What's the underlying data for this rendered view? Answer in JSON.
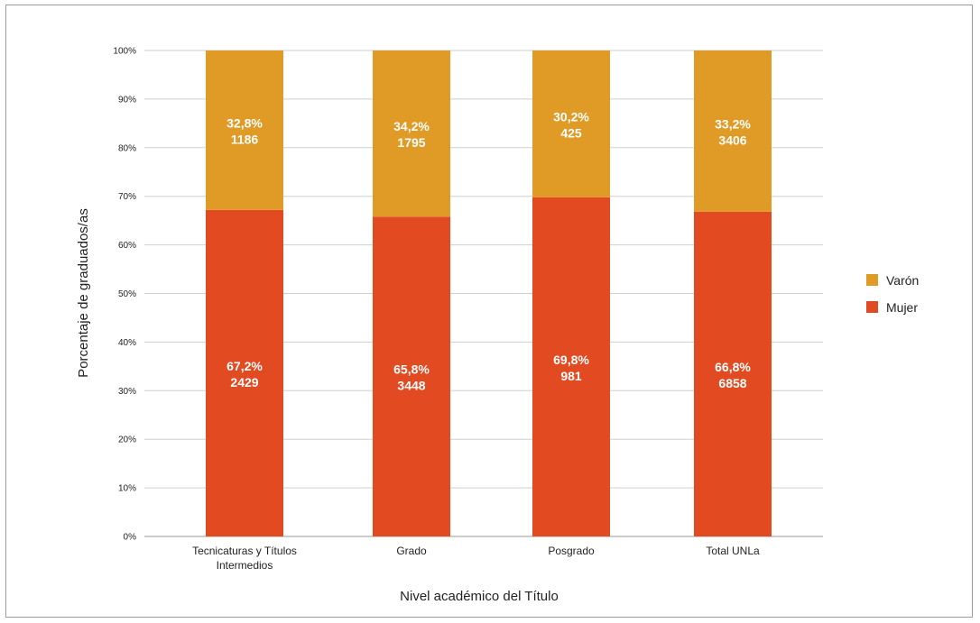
{
  "chart_data": {
    "type": "bar",
    "stacked": true,
    "percent_stacked": true,
    "categories": [
      [
        "Tecnicaturas y Títulos",
        "Intermedios"
      ],
      [
        "Grado"
      ],
      [
        "Posgrado"
      ],
      [
        "Total UNLa"
      ]
    ],
    "series": [
      {
        "name": "Mujer",
        "color": "#e24b22",
        "values": [
          67.2,
          65.8,
          69.8,
          66.8
        ],
        "labels": [
          "67,2%",
          "65,8%",
          "69,8%",
          "66,8%"
        ],
        "counts": [
          "2429",
          "3448",
          "981",
          "6858"
        ]
      },
      {
        "name": "Varón",
        "color": "#e09a26",
        "values": [
          32.8,
          34.2,
          30.2,
          33.2
        ],
        "labels": [
          "32,8%",
          "34,2%",
          "30,2%",
          "33,2%"
        ],
        "counts": [
          "1186",
          "1795",
          "425",
          "3406"
        ]
      }
    ],
    "yticks": [
      "0%",
      "10%",
      "20%",
      "30%",
      "40%",
      "50%",
      "60%",
      "70%",
      "80%",
      "90%",
      "100%"
    ],
    "ylim": [
      0,
      100
    ],
    "xlabel": "Nivel académico del Título",
    "ylabel": "Porcentaje de graduados/as",
    "legend": [
      {
        "name": "Varón",
        "color": "#e09a26"
      },
      {
        "name": "Mujer",
        "color": "#e24b22"
      }
    ],
    "legend_position": "right",
    "grid": true
  }
}
